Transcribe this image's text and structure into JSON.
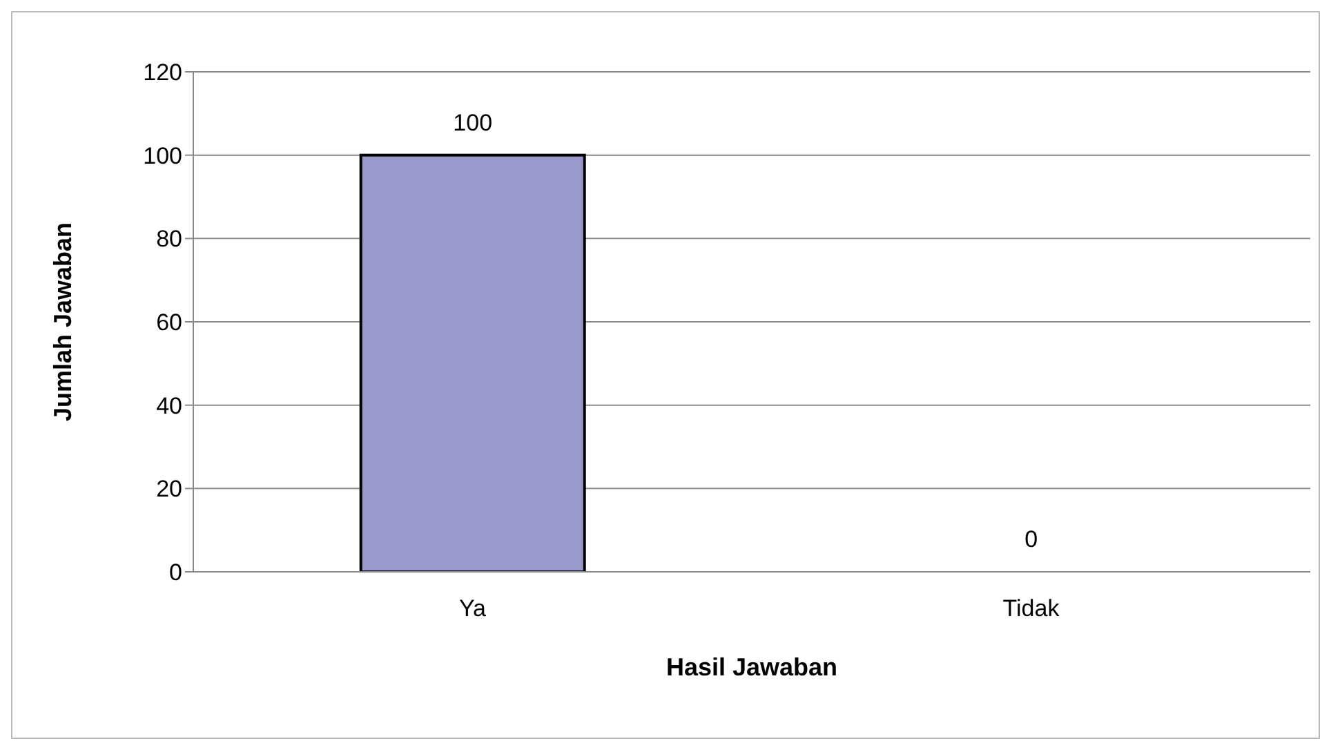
{
  "chart_data": {
    "type": "bar",
    "xlabel": "Hasil Jawaban",
    "ylabel": "Jumlah Jawaban",
    "categories": [
      "Ya",
      "Tidak"
    ],
    "values": [
      100,
      0
    ],
    "color": "#9999cc",
    "ylim": [
      0,
      120
    ],
    "yticks": [
      0,
      20,
      40,
      60,
      80,
      100,
      120
    ],
    "grid": "y",
    "data_labels": true
  }
}
